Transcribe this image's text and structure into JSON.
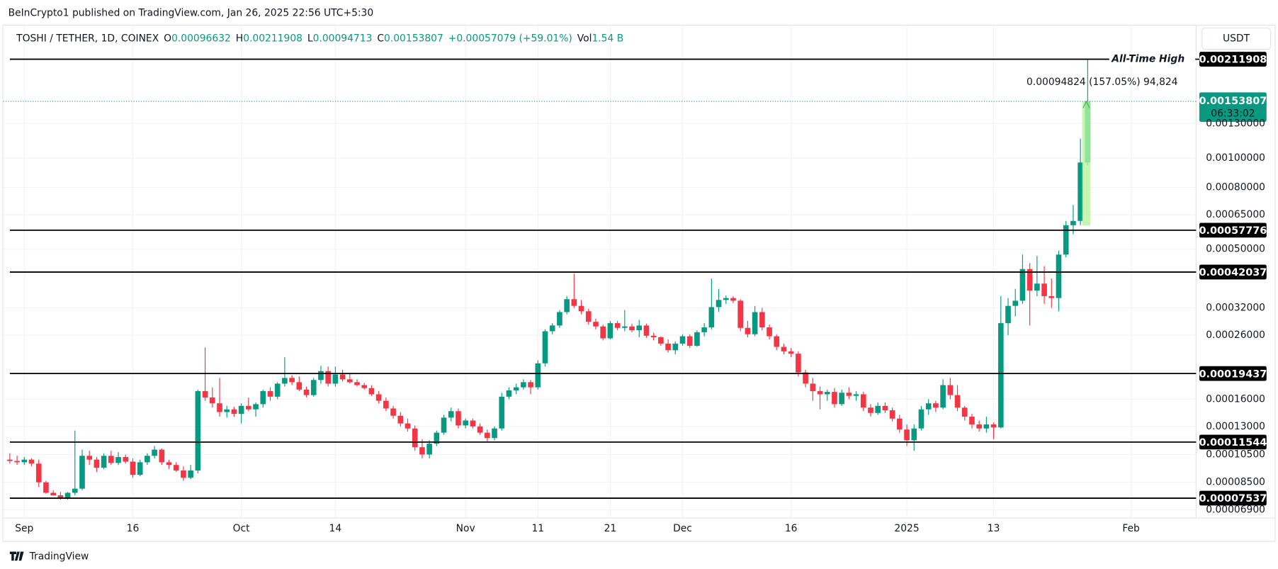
{
  "publisher": "BeInCrypto1 published on TradingView.com, Jan 26, 2025 22:56 UTC+5:30",
  "footer": "TradingView",
  "header": {
    "symbol": "TOSHI / TETHER, 1D, COINEX",
    "fields": [
      {
        "key": "O",
        "value": "0.00096632"
      },
      {
        "key": "H",
        "value": "0.00211908"
      },
      {
        "key": "L",
        "value": "0.00094713"
      },
      {
        "key": "C",
        "value": "0.00153807"
      }
    ],
    "change": "+0.00057079 (+59.01%)",
    "volume_key": "Vol",
    "volume": "1.54 B",
    "currency": "USDT"
  },
  "chart_data": {
    "type": "candlestick",
    "log_scale": true,
    "grid": true,
    "up_color": "#089981",
    "down_color": "#f23645",
    "ylim": [
      6.48e-05,
      0.00272
    ],
    "yticks": [
      {
        "value": 6.9e-05,
        "label": "0.00006900"
      },
      {
        "value": 8.5e-05,
        "label": "0.00008500"
      },
      {
        "value": 0.000105,
        "label": "0.00010500"
      },
      {
        "value": 0.00013,
        "label": "0.00013000"
      },
      {
        "value": 0.00016,
        "label": "0.00016000"
      },
      {
        "value": 0.00026,
        "label": "0.00026000"
      },
      {
        "value": 0.00032,
        "label": "0.00032000"
      },
      {
        "value": 0.0005,
        "label": "0.00050000"
      },
      {
        "value": 0.00065,
        "label": "0.00065000"
      },
      {
        "value": 0.0008,
        "label": "0.00080000"
      },
      {
        "value": 0.001,
        "label": "0.00100000"
      },
      {
        "value": 0.0013,
        "label": "0.00130000"
      }
    ],
    "levels": [
      0.00211908,
      0.00057776,
      0.00042037,
      0.00019437,
      0.00011544,
      7.537e-05
    ],
    "level_note": "All-Time High",
    "last_price": 0.00153807,
    "countdown": "06:33:02",
    "measurement": "0.00094824 (157.05%) 94,824",
    "categories": [
      null,
      null,
      "Sep",
      null,
      null,
      null,
      null,
      null,
      null,
      null,
      null,
      null,
      null,
      null,
      null,
      null,
      null,
      "16",
      null,
      null,
      null,
      null,
      null,
      null,
      null,
      null,
      null,
      null,
      null,
      null,
      null,
      null,
      "Oct",
      null,
      null,
      null,
      null,
      null,
      null,
      null,
      null,
      null,
      null,
      null,
      null,
      "14",
      null,
      null,
      null,
      null,
      null,
      null,
      null,
      null,
      null,
      null,
      null,
      null,
      null,
      null,
      null,
      null,
      null,
      "Nov",
      null,
      null,
      null,
      null,
      null,
      null,
      null,
      null,
      null,
      "11",
      null,
      null,
      null,
      null,
      null,
      null,
      null,
      null,
      null,
      "21",
      null,
      null,
      null,
      null,
      null,
      null,
      null,
      null,
      null,
      "Dec",
      null,
      null,
      null,
      null,
      null,
      null,
      null,
      null,
      null,
      null,
      null,
      null,
      null,
      null,
      "16",
      null,
      null,
      null,
      null,
      null,
      null,
      null,
      null,
      null,
      null,
      null,
      null,
      null,
      null,
      null,
      "2025",
      null,
      null,
      null,
      null,
      null,
      null,
      null,
      null,
      null,
      null,
      null,
      "13",
      null,
      null,
      null,
      null,
      null,
      null,
      null,
      null,
      null,
      null,
      null,
      null,
      null,
      null,
      null,
      null,
      null,
      null,
      "Feb",
      null,
      null,
      null,
      null,
      null,
      null,
      null,
      null
    ],
    "open": [
      0.000101,
      0.0001,
      9.9e-05,
      0.000101,
      9.8e-05,
      8.5e-05,
      7.85e-05,
      7.7e-05,
      7.55e-05,
      7.85e-05,
      8.1e-05,
      0.000104,
      0.000101,
      9.5e-05,
      0.000104,
      9.85e-05,
      0.000103,
      9.95e-05,
      9e-05,
      9.9e-05,
      0.000104,
      0.000109,
      9.9e-05,
      9.7e-05,
      9.3e-05,
      8.8e-05,
      9.3e-05,
      0.00017,
      0.000162,
      0.000155,
      0.000145,
      0.000148,
      0.000143,
      0.000152,
      0.000148,
      0.000154,
      0.00017,
      0.000163,
      0.00018,
      0.000188,
      0.000182,
      0.000172,
      0.000165,
      0.000185,
      0.000198,
      0.00018,
      0.000193,
      0.000186,
      0.000182,
      0.000178,
      0.000174,
      0.000166,
      0.000158,
      0.000149,
      0.000141,
      0.000133,
      0.000128,
      0.000111,
      0.000105,
      0.000114,
      0.000124,
      0.000139,
      0.000146,
      0.000131,
      0.000136,
      0.00013,
      0.000124,
      0.000119,
      0.000128,
      0.000163,
      0.000171,
      0.000175,
      0.000182,
      0.000175,
      0.00021,
      0.000268,
      0.00028,
      0.00031,
      0.000342,
      0.000325,
      0.000312,
      0.000288,
      0.000278,
      0.000254,
      0.000285,
      0.000275,
      0.000278,
      0.00027,
      0.00028,
      0.000259,
      0.000256,
      0.000244,
      0.000232,
      0.000244,
      0.000258,
      0.00024,
      0.000266,
      0.000276,
      0.000322,
      0.00034,
      0.000345,
      0.000338,
      0.000275,
      0.000262,
      0.00031,
      0.000276,
      0.000258,
      0.000238,
      0.00023,
      0.000226,
      0.000196,
      0.00018,
      0.00017,
      0.000166,
      0.000169,
      0.000154,
      0.000168,
      0.000164,
      0.000166,
      0.00015,
      0.000144,
      0.000152,
      0.000147,
      0.000138,
      0.000127,
      0.000117,
      0.000128,
      0.000148,
      0.000155,
      0.00015,
      0.000178,
      0.000165,
      0.00015,
      0.00014,
      0.000132,
      0.000128,
      0.000132,
      0.000129,
      0.000285,
      0.000325,
      0.000338,
      0.00043,
      0.000365,
      0.000385,
      0.00035,
      0.000345,
      0.00048,
      0.0006,
      0.00062,
      0.00096632,
      null,
      null,
      null,
      null,
      null,
      null,
      null,
      null,
      null,
      null,
      null,
      null,
      null,
      null
    ],
    "high": [
      0.000106,
      0.000104,
      0.000103,
      0.000102,
      0.000101,
      8.6e-05,
      8e-05,
      7.9e-05,
      7.9e-05,
      0.000126,
      0.000109,
      0.000108,
      0.000103,
      0.000106,
      0.000108,
      0.000107,
      0.000105,
      0.000102,
      0.000101,
      0.000106,
      0.000112,
      0.00011,
      0.000101,
      9.9e-05,
      9.6e-05,
      9.7e-05,
      0.000172,
      0.000237,
      0.000175,
      0.000188,
      0.000152,
      0.000151,
      0.000155,
      0.000162,
      0.000156,
      0.000172,
      0.000175,
      0.000182,
      0.00022,
      0.000192,
      0.00019,
      0.000176,
      0.000188,
      0.000206,
      0.000205,
      0.000205,
      0.0002,
      0.000195,
      0.000186,
      0.000181,
      0.000178,
      0.00017,
      0.000162,
      0.000152,
      0.000145,
      0.000138,
      0.000131,
      0.000118,
      0.000117,
      0.000126,
      0.000142,
      0.00015,
      0.000149,
      0.000138,
      0.000138,
      0.000133,
      0.000127,
      0.00013,
      0.000168,
      0.000175,
      0.00018,
      0.000186,
      0.000185,
      0.000215,
      0.000272,
      0.000285,
      0.000315,
      0.00035,
      0.000415,
      0.00034,
      0.000318,
      0.000295,
      0.000282,
      0.00029,
      0.00029,
      0.000315,
      0.000284,
      0.000292,
      0.000284,
      0.000265,
      0.000258,
      0.000252,
      0.000248,
      0.000262,
      0.000262,
      0.00027,
      0.000285,
      0.0004,
      0.00037,
      0.000352,
      0.00035,
      0.000342,
      0.00029,
      0.000325,
      0.00032,
      0.000282,
      0.000262,
      0.000244,
      0.000236,
      0.00023,
      0.0002,
      0.000188,
      0.000176,
      0.000172,
      0.000174,
      0.000172,
      0.000175,
      0.00017,
      0.000169,
      0.000154,
      0.000156,
      0.000156,
      0.00015,
      0.000142,
      0.000132,
      0.000132,
      0.000152,
      0.00016,
      0.000158,
      0.000186,
      0.000188,
      0.000178,
      0.000152,
      0.000143,
      0.000136,
      0.00014,
      0.000134,
      0.00035,
      0.000345,
      0.00037,
      0.00048,
      0.00045,
      0.000475,
      0.00044,
      0.0004,
      0.000495,
      0.00062,
      0.0007,
      0.00116,
      0.00211908,
      null,
      null,
      null,
      null,
      null,
      null,
      null,
      null,
      null,
      null,
      null,
      null,
      null,
      null
    ],
    "low": [
      9.8e-05,
      9.7e-05,
      9.7e-05,
      9.6e-05,
      8.2e-05,
      7.8e-05,
      7.7e-05,
      7.45e-05,
      7.45e-05,
      7.7e-05,
      8e-05,
      9.7e-05,
      9.2e-05,
      9.4e-05,
      9.7e-05,
      9.7e-05,
      9.8e-05,
      8.8e-05,
      8.9e-05,
      9.7e-05,
      0.000102,
      9.7e-05,
      9.4e-05,
      9.2e-05,
      8.6e-05,
      8.7e-05,
      9.1e-05,
      0.000158,
      0.00015,
      0.00014,
      0.000139,
      0.00014,
      0.000133,
      0.000146,
      0.00014,
      0.00015,
      0.000158,
      0.00016,
      0.000176,
      0.000178,
      0.00017,
      0.000162,
      0.000163,
      0.00018,
      0.000176,
      0.000176,
      0.000183,
      0.00018,
      0.000176,
      0.000172,
      0.000164,
      0.000155,
      0.000146,
      0.000138,
      0.00013,
      0.000125,
      0.000108,
      0.000102,
      0.000102,
      0.000112,
      0.000122,
      0.000135,
      0.000128,
      0.000128,
      0.000128,
      0.000122,
      0.000116,
      0.000117,
      0.000126,
      0.00016,
      0.000166,
      0.000172,
      0.000166,
      0.000172,
      0.000205,
      0.000262,
      0.000275,
      0.000305,
      0.00032,
      0.000305,
      0.000282,
      0.000272,
      0.00025,
      0.000252,
      0.00027,
      0.000268,
      0.000266,
      0.000256,
      0.000255,
      0.00025,
      0.00024,
      0.000228,
      0.000225,
      0.00024,
      0.000236,
      0.000238,
      0.000258,
      0.000272,
      0.00031,
      0.00033,
      0.000332,
      0.000268,
      0.000256,
      0.000258,
      0.00027,
      0.000252,
      0.000232,
      0.000225,
      0.00022,
      0.00019,
      0.000175,
      0.000158,
      0.000148,
      0.000158,
      0.00015,
      0.000152,
      0.00016,
      0.000158,
      0.000146,
      0.00014,
      0.000142,
      0.000144,
      0.000135,
      0.000124,
      0.000112,
      0.000108,
      0.000126,
      0.000142,
      0.000145,
      0.000148,
      0.00016,
      0.000146,
      0.000136,
      0.000128,
      0.000125,
      0.000124,
      0.000118,
      0.000128,
      0.00026,
      0.0003,
      0.00033,
      0.00028,
      0.00035,
      0.00033,
      0.00032,
      0.000312,
      0.00047,
      0.00056,
      0.0006,
      0.00094713,
      null,
      null,
      null,
      null,
      null,
      null,
      null,
      null,
      null,
      null,
      null,
      null,
      null,
      null
    ],
    "close": [
      0.0001,
      9.9e-05,
      0.000101,
      9.8e-05,
      8.5e-05,
      7.85e-05,
      7.7e-05,
      7.55e-05,
      7.85e-05,
      8.1e-05,
      0.000104,
      0.000101,
      9.5e-05,
      0.000104,
      9.85e-05,
      0.000103,
      9.95e-05,
      9e-05,
      9.9e-05,
      0.000104,
      0.000109,
      9.9e-05,
      9.7e-05,
      9.3e-05,
      8.8e-05,
      9.3e-05,
      0.00017,
      0.000162,
      0.000155,
      0.000145,
      0.000148,
      0.000143,
      0.000152,
      0.000148,
      0.000154,
      0.00017,
      0.000163,
      0.00018,
      0.000188,
      0.000182,
      0.000172,
      0.000165,
      0.000185,
      0.000198,
      0.00018,
      0.000193,
      0.000186,
      0.000182,
      0.000178,
      0.000174,
      0.000166,
      0.000158,
      0.000149,
      0.000141,
      0.000133,
      0.000128,
      0.000111,
      0.000105,
      0.000114,
      0.000124,
      0.000139,
      0.000146,
      0.000131,
      0.000136,
      0.00013,
      0.000124,
      0.000119,
      0.000128,
      0.000163,
      0.000171,
      0.000175,
      0.000182,
      0.000175,
      0.00021,
      0.000268,
      0.00028,
      0.00031,
      0.000342,
      0.000325,
      0.000312,
      0.000288,
      0.000278,
      0.000254,
      0.000285,
      0.000275,
      0.000278,
      0.00027,
      0.00028,
      0.000259,
      0.000256,
      0.000244,
      0.000232,
      0.000244,
      0.000258,
      0.00024,
      0.000266,
      0.000276,
      0.000322,
      0.00034,
      0.000345,
      0.000338,
      0.000275,
      0.000262,
      0.00031,
      0.000276,
      0.000258,
      0.000238,
      0.00023,
      0.000226,
      0.000196,
      0.00018,
      0.00017,
      0.000166,
      0.000169,
      0.000154,
      0.000168,
      0.000164,
      0.000166,
      0.00015,
      0.000144,
      0.000152,
      0.000147,
      0.000138,
      0.000127,
      0.000117,
      0.000128,
      0.000148,
      0.000155,
      0.00015,
      0.000178,
      0.000165,
      0.00015,
      0.00014,
      0.000132,
      0.000128,
      0.000132,
      0.000129,
      0.000285,
      0.000325,
      0.000338,
      0.00043,
      0.000365,
      0.000385,
      0.00035,
      0.000345,
      0.00048,
      0.0006,
      0.00062,
      0.00096632,
      0.00153807,
      null,
      null,
      null,
      null,
      null,
      null,
      null,
      null,
      null,
      null,
      null,
      null,
      null,
      null
    ]
  }
}
